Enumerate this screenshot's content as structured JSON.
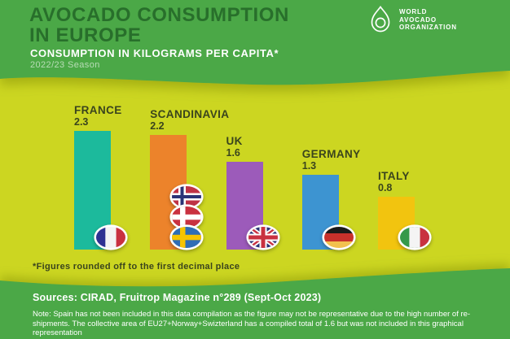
{
  "header": {
    "title_line1": "AVOCADO CONSUMPTION",
    "title_line2": "IN EUROPE",
    "subtitle": "CONSUMPTION IN KILOGRAMS PER CAPITA*",
    "season": "2022/23 Season",
    "logo": {
      "icon": "avocado-logo-icon",
      "line1": "WORLD",
      "line2": "AVOCADO",
      "line3": "ORGANIZATION"
    }
  },
  "chart_data": {
    "type": "bar",
    "title": "Avocado consumption in Europe, kilograms per capita, 2022/23 season",
    "categories": [
      "FRANCE",
      "SCANDINAVIA",
      "UK",
      "GERMANY",
      "ITALY"
    ],
    "values": [
      2.3,
      2.2,
      1.6,
      1.3,
      0.8
    ],
    "value_labels": [
      "2.3",
      "2.2",
      "1.6",
      "1.3",
      "0.8"
    ],
    "bar_colors": [
      "#1CBA9C",
      "#EC832B",
      "#9C5BBA",
      "#3D94D1",
      "#F2C40F"
    ],
    "flags": [
      [
        "france"
      ],
      [
        "norway",
        "denmark",
        "sweden"
      ],
      [
        "uk"
      ],
      [
        "germany"
      ],
      [
        "italy"
      ]
    ],
    "xlabel": "",
    "ylabel": "Consumption (kg per capita)",
    "ylim": [
      0,
      2.3
    ],
    "grid": false,
    "legend": "none"
  },
  "footnote": "*Figures rounded off to the first decimal place",
  "footer": {
    "sources": "Sources: CIRAD, Fruitrop Magazine n°289 (Sept-Oct 2023)",
    "note": "Note: Spain has not been included in this data compilation as the figure may not be representative due to the high number of re-shipments. The collective area of EU27+Norway+Swizterland has a compiled total of 1.6 but was not included in this graphical representation"
  },
  "colors": {
    "header_green": "#4BA846",
    "body_yellow": "#CCD621",
    "title_green": "#286F2B",
    "label_dark": "#3A441D",
    "white": "#FFFFFF"
  }
}
